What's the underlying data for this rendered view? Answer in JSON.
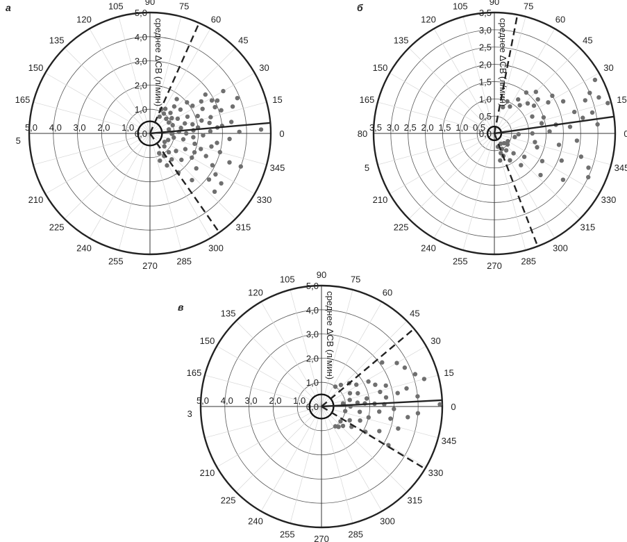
{
  "chart_data": [
    {
      "type": "scatter",
      "projection": "polar",
      "panel_label": "а",
      "ylabel": "среднее ΔСВ (л/мин)",
      "radial_max": 5.0,
      "radial_ticks": [
        "0,0",
        "1,0",
        "2,0",
        "3,0",
        "4,0",
        "5,0"
      ],
      "left_axis_ticks": [
        "5,0",
        "4,0",
        "3,0",
        "2,0",
        "1,0"
      ],
      "angle_labels": [
        "0",
        "15",
        "30",
        "45",
        "60",
        "75",
        "90",
        "105",
        "120",
        "135",
        "150",
        "165",
        "5",
        "210",
        "225",
        "240",
        "255",
        "270",
        "285",
        "300",
        "315",
        "330",
        "345"
      ],
      "inner_circle_radius": 0.5,
      "mean_line": {
        "angle": 5,
        "r": 5.0
      },
      "limits_of_agreement": [
        {
          "angle": 66,
          "r": 5.0
        },
        {
          "angle": 305,
          "r": 5.0
        }
      ],
      "points": [
        {
          "angle": 2,
          "r": 4.6
        },
        {
          "angle": 8,
          "r": 3.4
        },
        {
          "angle": 10,
          "r": 2.5
        },
        {
          "angle": 5,
          "r": 2.8
        },
        {
          "angle": 12,
          "r": 1.8
        },
        {
          "angle": 15,
          "r": 2.6
        },
        {
          "angle": 18,
          "r": 3.6
        },
        {
          "angle": 22,
          "r": 3.9
        },
        {
          "angle": 25,
          "r": 2.4
        },
        {
          "angle": 26,
          "r": 3.1
        },
        {
          "angle": 28,
          "r": 2.9
        },
        {
          "angle": 20,
          "r": 2.1
        },
        {
          "angle": 14,
          "r": 2.2
        },
        {
          "angle": 30,
          "r": 3.5
        },
        {
          "angle": 33,
          "r": 2.1
        },
        {
          "angle": 35,
          "r": 2.8
        },
        {
          "angle": 38,
          "r": 1.6
        },
        {
          "angle": 40,
          "r": 2.0
        },
        {
          "angle": 45,
          "r": 1.2
        },
        {
          "angle": 48,
          "r": 1.5
        },
        {
          "angle": 52,
          "r": 1.8
        },
        {
          "angle": 55,
          "r": 1.0
        },
        {
          "angle": 58,
          "r": 1.2
        },
        {
          "angle": 60,
          "r": 0.8
        },
        {
          "angle": 65,
          "r": 1.1
        },
        {
          "angle": 0,
          "r": 1.5
        },
        {
          "angle": 3,
          "r": 1.2
        },
        {
          "angle": 7,
          "r": 2.0
        },
        {
          "angle": 10,
          "r": 1.3
        },
        {
          "angle": 16,
          "r": 1.5
        },
        {
          "angle": 24,
          "r": 1.7
        },
        {
          "angle": 28,
          "r": 1.3
        },
        {
          "angle": 35,
          "r": 1.1
        },
        {
          "angle": 42,
          "r": 0.9
        },
        {
          "angle": 2,
          "r": 2.5
        },
        {
          "angle": 6,
          "r": 3.0
        },
        {
          "angle": 358,
          "r": 2.2
        },
        {
          "angle": 355,
          "r": 1.8
        },
        {
          "angle": 352,
          "r": 2.8
        },
        {
          "angle": 350,
          "r": 1.4
        },
        {
          "angle": 348,
          "r": 2.6
        },
        {
          "angle": 345,
          "r": 3.0
        },
        {
          "angle": 343,
          "r": 2.2
        },
        {
          "angle": 340,
          "r": 3.5
        },
        {
          "angle": 338,
          "r": 2.5
        },
        {
          "angle": 336,
          "r": 1.6
        },
        {
          "angle": 333,
          "r": 2.9
        },
        {
          "angle": 330,
          "r": 2.0
        },
        {
          "angle": 328,
          "r": 3.2
        },
        {
          "angle": 326,
          "r": 1.3
        },
        {
          "angle": 323,
          "r": 2.4
        },
        {
          "angle": 320,
          "r": 1.7
        },
        {
          "angle": 318,
          "r": 3.6
        },
        {
          "angle": 315,
          "r": 1.1
        },
        {
          "angle": 312,
          "r": 2.6
        },
        {
          "angle": 310,
          "r": 1.4
        },
        {
          "angle": 306,
          "r": 2.0
        },
        {
          "angle": 302,
          "r": 1.1
        },
        {
          "angle": 298,
          "r": 1.5
        },
        {
          "angle": 295,
          "r": 0.9
        },
        {
          "angle": 290,
          "r": 1.2
        },
        {
          "angle": 325,
          "r": 3.6
        },
        {
          "angle": 322,
          "r": 3.1
        },
        {
          "angle": 340,
          "r": 4.0
        },
        {
          "angle": 1,
          "r": 3.7
        },
        {
          "angle": 356,
          "r": 3.3
        },
        {
          "angle": 359,
          "r": 0.9
        },
        {
          "angle": 350,
          "r": 1.0
        },
        {
          "angle": 340,
          "r": 0.8
        },
        {
          "angle": 330,
          "r": 0.7
        },
        {
          "angle": 318,
          "r": 0.8
        },
        {
          "angle": 30,
          "r": 0.9
        },
        {
          "angle": 20,
          "r": 1.0
        },
        {
          "angle": 12,
          "r": 0.8
        },
        {
          "angle": 347,
          "r": 1.9
        },
        {
          "angle": 337,
          "r": 2.0
        },
        {
          "angle": 4,
          "r": 1.8
        },
        {
          "angle": 22,
          "r": 2.9
        },
        {
          "angle": 32,
          "r": 2.5
        },
        {
          "angle": 18,
          "r": 3.1
        }
      ]
    },
    {
      "type": "scatter",
      "projection": "polar",
      "panel_label": "б",
      "ylabel": "среднее ΔСВ (л/мин)",
      "radial_max": 3.5,
      "radial_ticks": [
        "0,0",
        "0,5",
        "1,0",
        "1,5",
        "2,0",
        "2,5",
        "3,0",
        "3,5"
      ],
      "left_axis_ticks": [
        "3,5",
        "3,0",
        "2,5",
        "2,0",
        "1,5",
        "1,0",
        "0,5"
      ],
      "angle_labels": [
        "0",
        "15",
        "30",
        "45",
        "60",
        "75",
        "90",
        "105",
        "120",
        "135",
        "150",
        "165",
        "80",
        "5",
        "210",
        "225",
        "240",
        "255",
        "270",
        "285",
        "300",
        "315",
        "330",
        "345"
      ],
      "inner_circle_radius": 0.2,
      "mean_line": {
        "angle": 8,
        "r": 3.5
      },
      "limits_of_agreement": [
        {
          "angle": 79,
          "r": 3.5
        },
        {
          "angle": 291,
          "r": 3.5
        }
      ],
      "points": [
        {
          "angle": 15,
          "r": 3.4
        },
        {
          "angle": 19,
          "r": 3.2
        },
        {
          "angle": 23,
          "r": 3.0
        },
        {
          "angle": 28,
          "r": 3.3
        },
        {
          "angle": 12,
          "r": 2.9
        },
        {
          "angle": 10,
          "r": 2.6
        },
        {
          "angle": 15,
          "r": 2.4
        },
        {
          "angle": 20,
          "r": 2.8
        },
        {
          "angle": 25,
          "r": 2.2
        },
        {
          "angle": 30,
          "r": 1.8
        },
        {
          "angle": 33,
          "r": 2.0
        },
        {
          "angle": 38,
          "r": 1.6
        },
        {
          "angle": 42,
          "r": 1.3
        },
        {
          "angle": 48,
          "r": 1.1
        },
        {
          "angle": 55,
          "r": 1.2
        },
        {
          "angle": 60,
          "r": 0.9
        },
        {
          "angle": 68,
          "r": 1.0
        },
        {
          "angle": 72,
          "r": 0.8
        },
        {
          "angle": 5,
          "r": 2.2
        },
        {
          "angle": 2,
          "r": 1.6
        },
        {
          "angle": 8,
          "r": 1.8
        },
        {
          "angle": 12,
          "r": 1.4
        },
        {
          "angle": 18,
          "r": 1.5
        },
        {
          "angle": 24,
          "r": 1.2
        },
        {
          "angle": 35,
          "r": 1.4
        },
        {
          "angle": 355,
          "r": 2.4
        },
        {
          "angle": 350,
          "r": 1.9
        },
        {
          "angle": 345,
          "r": 2.6
        },
        {
          "angle": 342,
          "r": 1.3
        },
        {
          "angle": 338,
          "r": 2.1
        },
        {
          "angle": 335,
          "r": 3.0
        },
        {
          "angle": 330,
          "r": 1.6
        },
        {
          "angle": 326,
          "r": 2.4
        },
        {
          "angle": 322,
          "r": 1.1
        },
        {
          "angle": 318,
          "r": 1.8
        },
        {
          "angle": 314,
          "r": 0.8
        },
        {
          "angle": 310,
          "r": 1.2
        },
        {
          "angle": 305,
          "r": 0.6
        },
        {
          "angle": 300,
          "r": 0.9
        },
        {
          "angle": 296,
          "r": 0.5
        },
        {
          "angle": 292,
          "r": 0.7
        },
        {
          "angle": 288,
          "r": 0.6
        },
        {
          "angle": 285,
          "r": 0.4
        },
        {
          "angle": 282,
          "r": 0.8
        },
        {
          "angle": 340,
          "r": 2.9
        },
        {
          "angle": 0,
          "r": 1.1
        },
        {
          "angle": 358,
          "r": 0.7
        },
        {
          "angle": 350,
          "r": 0.6
        },
        {
          "angle": 320,
          "r": 0.5
        },
        {
          "angle": 315,
          "r": 0.4
        },
        {
          "angle": 330,
          "r": 0.45
        },
        {
          "angle": 302,
          "r": 0.35
        },
        {
          "angle": 5,
          "r": 3.0
        },
        {
          "angle": 348,
          "r": 1.2
        },
        {
          "angle": 45,
          "r": 1.7
        },
        {
          "angle": 52,
          "r": 1.5
        }
      ]
    },
    {
      "type": "scatter",
      "projection": "polar",
      "panel_label": "в",
      "ylabel": "среднее ΔСВ (л/мин)",
      "radial_max": 5.0,
      "radial_ticks": [
        "0,0",
        "1,0",
        "2,0",
        "3,0",
        "4,0",
        "5,0"
      ],
      "left_axis_ticks": [
        "5,0",
        "4,0",
        "3,0",
        "2,0",
        "1,0"
      ],
      "angle_labels": [
        "0",
        "15",
        "30",
        "45",
        "60",
        "75",
        "90",
        "105",
        "120",
        "135",
        "150",
        "165",
        "3",
        "210",
        "225",
        "240",
        "255",
        "270",
        "285",
        "300",
        "315",
        "330",
        "345"
      ],
      "inner_circle_radius": 0.5,
      "mean_line": {
        "angle": 3,
        "r": 5.0
      },
      "limits_of_agreement": [
        {
          "angle": 40,
          "r": 5.0
        },
        {
          "angle": 329,
          "r": 5.0
        }
      ],
      "points": [
        {
          "angle": 15,
          "r": 4.4
        },
        {
          "angle": 19,
          "r": 4.1
        },
        {
          "angle": 25,
          "r": 3.8
        },
        {
          "angle": 30,
          "r": 3.6
        },
        {
          "angle": 36,
          "r": 3.1
        },
        {
          "angle": 12,
          "r": 3.6
        },
        {
          "angle": 10,
          "r": 3.2
        },
        {
          "angle": 6,
          "r": 4.0
        },
        {
          "angle": 8,
          "r": 2.7
        },
        {
          "angle": 14,
          "r": 2.5
        },
        {
          "angle": 18,
          "r": 2.8
        },
        {
          "angle": 22,
          "r": 2.4
        },
        {
          "angle": 28,
          "r": 2.2
        },
        {
          "angle": 32,
          "r": 1.7
        },
        {
          "angle": 40,
          "r": 1.5
        },
        {
          "angle": 48,
          "r": 1.2
        },
        {
          "angle": 55,
          "r": 1.0
        },
        {
          "angle": 4,
          "r": 1.8
        },
        {
          "angle": 2,
          "r": 2.6
        },
        {
          "angle": 0,
          "r": 1.2
        },
        {
          "angle": 6,
          "r": 1.5
        },
        {
          "angle": 10,
          "r": 1.9
        },
        {
          "angle": 3,
          "r": 2.2
        },
        {
          "angle": 358,
          "r": 3.0
        },
        {
          "angle": 355,
          "r": 2.4
        },
        {
          "angle": 352,
          "r": 1.6
        },
        {
          "angle": 350,
          "r": 2.9
        },
        {
          "angle": 347,
          "r": 2.0
        },
        {
          "angle": 344,
          "r": 3.3
        },
        {
          "angle": 340,
          "r": 1.7
        },
        {
          "angle": 337,
          "r": 2.6
        },
        {
          "angle": 334,
          "r": 1.3
        },
        {
          "angle": 330,
          "r": 2.1
        },
        {
          "angle": 326,
          "r": 1.5
        },
        {
          "angle": 322,
          "r": 1.0
        },
        {
          "angle": 318,
          "r": 1.2
        },
        {
          "angle": 330,
          "r": 3.2
        },
        {
          "angle": 356,
          "r": 4.0
        },
        {
          "angle": 1,
          "r": 4.9
        },
        {
          "angle": 20,
          "r": 1.6
        },
        {
          "angle": 349,
          "r": 1.0
        },
        {
          "angle": 310,
          "r": 1.1
        },
        {
          "angle": 305,
          "r": 1.0
        },
        {
          "angle": 13,
          "r": 1.2
        },
        {
          "angle": 25,
          "r": 1.3
        },
        {
          "angle": 8,
          "r": 0.9
        },
        {
          "angle": 353,
          "r": 3.6
        }
      ]
    }
  ]
}
